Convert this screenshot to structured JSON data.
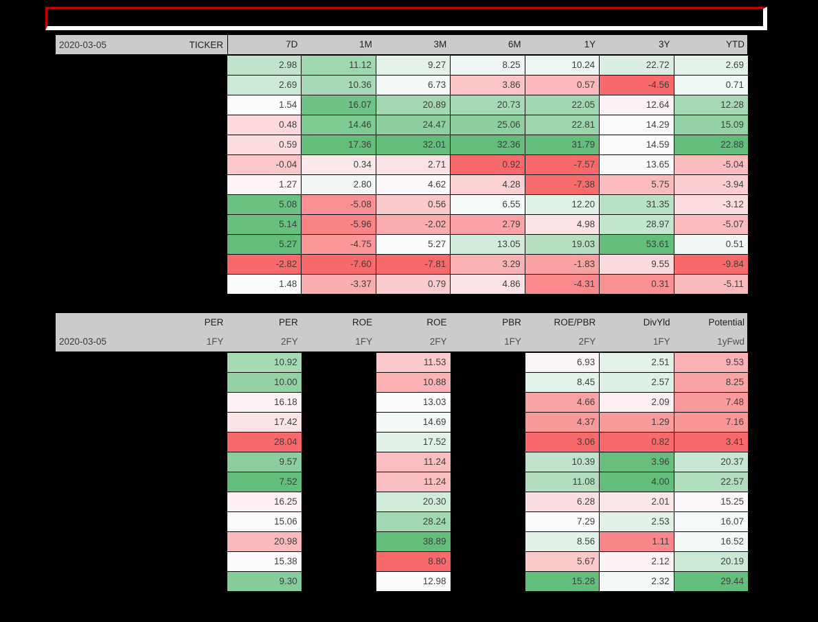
{
  "banner": {
    "text": "",
    "outer_border_color": "#C00000",
    "inner_border_color": "#FFFFFF",
    "fill_color": "#000000"
  },
  "colors": {
    "page_background": "#000000",
    "header_background": "#CBCBCB",
    "header_text": "#1F1F1F",
    "header_subtext": "#4F4F4F",
    "cell_text": "#3F3F3F",
    "hidden_cell": "#000000",
    "scale_low": "#F8696B",
    "scale_mid": "#FCFCFF",
    "scale_high": "#63BE7B"
  },
  "chart_data": [
    {
      "type": "heatmap",
      "title": "Price returns by period (conditional red-white-green scale per column, midpoint at column median)",
      "date": "2020-03-05",
      "row_label_header": "TICKER",
      "row_labels_hidden": true,
      "columns": [
        "7D",
        "1M",
        "3M",
        "6M",
        "1Y",
        "3Y",
        "YTD"
      ],
      "rows": [
        [
          2.98,
          11.12,
          9.27,
          8.25,
          10.24,
          22.72,
          2.69
        ],
        [
          2.69,
          10.36,
          6.73,
          3.86,
          0.57,
          -4.56,
          0.71
        ],
        [
          1.54,
          16.07,
          20.89,
          20.73,
          22.05,
          12.64,
          12.28
        ],
        [
          0.48,
          14.46,
          24.47,
          25.06,
          22.81,
          14.29,
          15.09
        ],
        [
          0.59,
          17.36,
          32.01,
          32.36,
          31.79,
          14.59,
          22.88
        ],
        [
          -0.04,
          0.34,
          2.71,
          0.92,
          -7.57,
          13.65,
          -5.04
        ],
        [
          1.27,
          2.8,
          4.62,
          4.28,
          -7.38,
          5.75,
          -3.94
        ],
        [
          5.08,
          -5.08,
          0.56,
          6.55,
          12.2,
          31.35,
          -3.12
        ],
        [
          5.14,
          -5.96,
          -2.02,
          2.79,
          4.98,
          28.97,
          -5.07
        ],
        [
          5.27,
          -4.75,
          5.27,
          13.05,
          19.03,
          53.61,
          0.51
        ],
        [
          -2.82,
          -7.6,
          -7.81,
          3.29,
          -1.83,
          9.55,
          -9.84
        ],
        [
          1.48,
          -3.37,
          0.79,
          4.86,
          -4.31,
          0.31,
          -5.11
        ]
      ]
    },
    {
      "type": "heatmap",
      "title": "Valuation metrics (green-white-red for PER, red-white-green otherwise; 1FY PER/ROE/PBR columns and row labels blacked out)",
      "date": "2020-03-05",
      "row_labels_hidden": true,
      "columns": [
        {
          "name": "PER",
          "period": "1FY",
          "hidden": true,
          "reverse_scale": true
        },
        {
          "name": "PER",
          "period": "2FY",
          "hidden": false,
          "reverse_scale": true
        },
        {
          "name": "ROE",
          "period": "1FY",
          "hidden": true,
          "reverse_scale": false
        },
        {
          "name": "ROE",
          "period": "2FY",
          "hidden": false,
          "reverse_scale": false
        },
        {
          "name": "PBR",
          "period": "1FY",
          "hidden": true,
          "reverse_scale": false
        },
        {
          "name": "ROE/PBR",
          "period": "2FY",
          "hidden": false,
          "reverse_scale": false
        },
        {
          "name": "DivYld",
          "period": "1FY",
          "hidden": false,
          "reverse_scale": false
        },
        {
          "name": "Potential",
          "period": "1yFwd",
          "hidden": false,
          "reverse_scale": false
        }
      ],
      "rows": [
        [
          null,
          10.92,
          null,
          11.53,
          null,
          6.93,
          2.51,
          9.53
        ],
        [
          null,
          10.0,
          null,
          10.88,
          null,
          8.45,
          2.57,
          8.25
        ],
        [
          null,
          16.18,
          null,
          13.03,
          null,
          4.66,
          2.09,
          7.48
        ],
        [
          null,
          17.42,
          null,
          14.69,
          null,
          4.37,
          1.29,
          7.16
        ],
        [
          null,
          28.04,
          null,
          17.52,
          null,
          3.06,
          0.82,
          3.41
        ],
        [
          null,
          9.57,
          null,
          11.24,
          null,
          10.39,
          3.96,
          20.37
        ],
        [
          null,
          7.52,
          null,
          11.24,
          null,
          11.08,
          4.0,
          22.57
        ],
        [
          null,
          16.25,
          null,
          20.3,
          null,
          6.28,
          2.01,
          15.25
        ],
        [
          null,
          15.06,
          null,
          28.24,
          null,
          7.29,
          2.53,
          16.07
        ],
        [
          null,
          20.98,
          null,
          38.89,
          null,
          8.56,
          1.11,
          16.52
        ],
        [
          null,
          15.38,
          null,
          8.8,
          null,
          5.67,
          2.12,
          20.19
        ],
        [
          null,
          9.3,
          null,
          12.98,
          null,
          15.28,
          2.32,
          29.44
        ]
      ]
    }
  ]
}
